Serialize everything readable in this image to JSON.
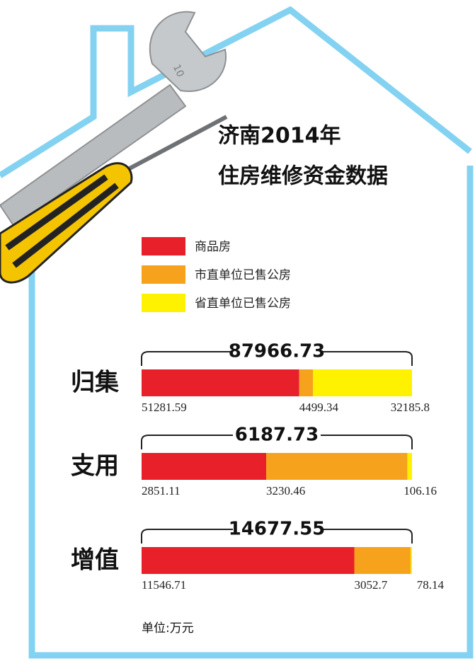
{
  "chart_data": {
    "type": "bar",
    "orientation": "horizontal",
    "stacked": true,
    "normalized": true,
    "title": [
      "济南2014年",
      "住房维修资金数据"
    ],
    "categories": [
      "归集",
      "支用",
      "增值"
    ],
    "totals": [
      87966.73,
      6187.73,
      14677.55
    ],
    "series": [
      {
        "name": "商品房",
        "color": "#e8202a",
        "values": [
          51281.59,
          2851.11,
          11546.71
        ]
      },
      {
        "name": "市直单位已售公房",
        "color": "#f6a21c",
        "values": [
          4499.34,
          3230.46,
          3052.7
        ]
      },
      {
        "name": "省直单位已售公房",
        "color": "#fff200",
        "values": [
          32185.8,
          106.16,
          78.14
        ]
      }
    ],
    "unit_note": "单位:万元"
  }
}
